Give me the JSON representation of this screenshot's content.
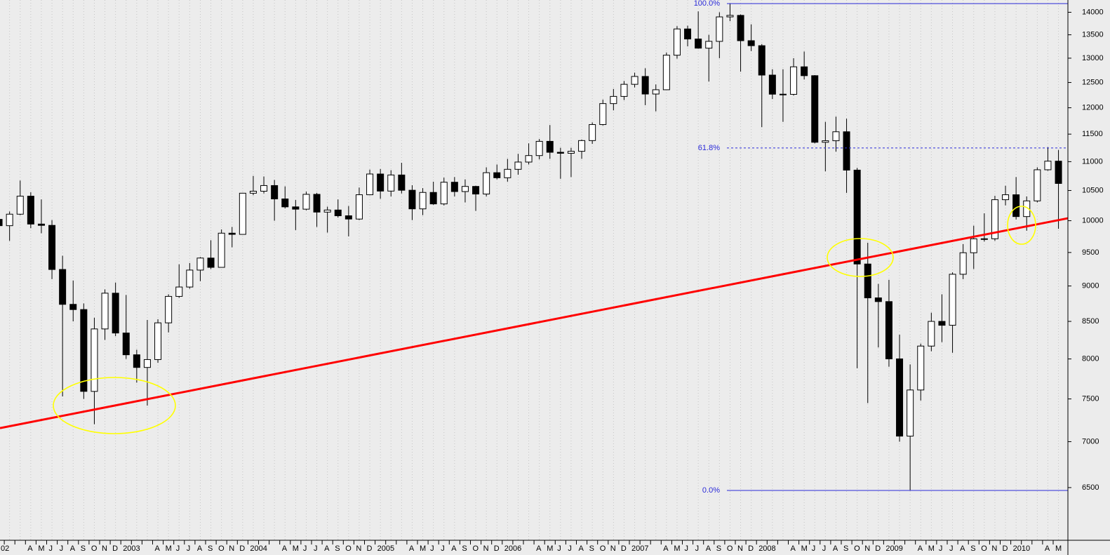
{
  "chart_data": {
    "type": "candlestick",
    "categories": [
      "02",
      null,
      null,
      "A",
      "M",
      "J",
      "J",
      "A",
      "S",
      "O",
      "N",
      "D",
      "2003",
      null,
      null,
      "A",
      "M",
      "J",
      "J",
      "A",
      "S",
      "O",
      "N",
      "D",
      "2004",
      null,
      null,
      "A",
      "M",
      "J",
      "J",
      "A",
      "S",
      "O",
      "N",
      "D",
      "2005",
      null,
      null,
      "A",
      "M",
      "J",
      "J",
      "A",
      "S",
      "O",
      "N",
      "D",
      "2006",
      null,
      null,
      "A",
      "M",
      "J",
      "J",
      "A",
      "S",
      "O",
      "N",
      "D",
      "2007",
      null,
      null,
      "A",
      "M",
      "J",
      "J",
      "A",
      "S",
      "O",
      "N",
      "D",
      "2008",
      null,
      null,
      "A",
      "M",
      "J",
      "J",
      "A",
      "S",
      "O",
      "N",
      "D",
      "2009",
      null,
      null,
      "A",
      "M",
      "J",
      "J",
      "A",
      "S",
      "O",
      "N",
      "D",
      "2010",
      null,
      null,
      "A",
      "M"
    ],
    "open": [
      10022,
      9920,
      10106,
      10404,
      9946,
      9925,
      9243,
      8737,
      8664,
      7592,
      8397,
      8896,
      8342,
      8054,
      7891,
      7992,
      8480,
      8850,
      8985,
      9234,
      9415,
      9275,
      9801,
      9782,
      10454,
      10488,
      10584,
      10358,
      10226,
      10188,
      10435,
      10140,
      10174,
      10080,
      10027,
      10428,
      10783,
      10490,
      10766,
      10504,
      10193,
      10467,
      10275,
      10641,
      10482,
      10569,
      10440,
      10806,
      10718,
      10865,
      10993,
      11109,
      11367,
      11168,
      11150,
      11186,
      11381,
      11679,
      12081,
      12222,
      12463,
      12622,
      12269,
      12354,
      13063,
      13628,
      13409,
      13212,
      13358,
      13896,
      13930,
      13372,
      13265,
      12650,
      12266,
      12263,
      12820,
      12638,
      11350,
      11378,
      11544,
      10851,
      9325,
      8829,
      8776,
      8001,
      7063,
      7609,
      8168,
      8500,
      8447,
      9172,
      9496,
      9712,
      9713,
      10345,
      10428,
      10067,
      10325,
      10857,
      11009
    ],
    "high": [
      10260,
      10150,
      10670,
      10470,
      10350,
      10010,
      9450,
      9080,
      8750,
      8550,
      8950,
      9050,
      8870,
      8120,
      8520,
      8530,
      8880,
      9320,
      9340,
      9430,
      9690,
      9860,
      9900,
      10460,
      10750,
      10740,
      10680,
      10570,
      10340,
      10480,
      10460,
      10230,
      10350,
      10240,
      10550,
      10860,
      10870,
      10850,
      10980,
      10590,
      10540,
      10650,
      10720,
      10730,
      10690,
      10580,
      10900,
      10950,
      11050,
      11140,
      11330,
      11410,
      11670,
      11250,
      11250,
      11400,
      11720,
      12160,
      12370,
      12530,
      12700,
      12790,
      12460,
      13120,
      13690,
      13700,
      14020,
      13500,
      14000,
      14198,
      13950,
      13730,
      13300,
      12770,
      12770,
      13000,
      13140,
      12650,
      11730,
      11830,
      11790,
      10890,
      9650,
      9030,
      9090,
      8320,
      7930,
      8200,
      8620,
      8880,
      9200,
      9630,
      9920,
      10120,
      10410,
      10580,
      10730,
      10400,
      10900,
      11260,
      11210
    ],
    "low": [
      9530,
      9680,
      10090,
      9880,
      9800,
      9100,
      7530,
      8500,
      7500,
      7200,
      8250,
      8300,
      8000,
      7700,
      7420,
      7950,
      8350,
      8830,
      8960,
      9070,
      9250,
      9270,
      9580,
      9780,
      10420,
      10450,
      10000,
      10200,
      9850,
      10170,
      9900,
      9810,
      10050,
      9750,
      10010,
      10420,
      10360,
      10400,
      10450,
      10010,
      10090,
      10260,
      10250,
      10400,
      10300,
      10160,
      10400,
      10690,
      10650,
      10770,
      10950,
      11040,
      11050,
      10700,
      10730,
      11050,
      11320,
      11660,
      11950,
      12150,
      12400,
      12050,
      11930,
      12350,
      12990,
      13250,
      13200,
      12520,
      13000,
      13800,
      12720,
      13150,
      11630,
      12170,
      11730,
      12240,
      12560,
      11330,
      10830,
      11180,
      10460,
      7880,
      7450,
      8150,
      7900,
      7000,
      6470,
      7480,
      8100,
      8220,
      8080,
      9100,
      9250,
      9670,
      9680,
      10250,
      10020,
      9840,
      10300,
      10840,
      9870
    ],
    "close": [
      9920,
      10106,
      10404,
      9946,
      9925,
      9243,
      8737,
      8664,
      7592,
      8397,
      8896,
      8342,
      8054,
      7891,
      7992,
      8480,
      8850,
      8985,
      9234,
      9415,
      9275,
      9801,
      9782,
      10454,
      10488,
      10584,
      10358,
      10226,
      10188,
      10435,
      10140,
      10174,
      10080,
      10027,
      10428,
      10783,
      10490,
      10766,
      10504,
      10193,
      10467,
      10275,
      10641,
      10482,
      10569,
      10440,
      10806,
      10718,
      10865,
      10993,
      11109,
      11367,
      11168,
      11150,
      11186,
      11381,
      11679,
      12081,
      12222,
      12463,
      12622,
      12269,
      12354,
      13063,
      13628,
      13409,
      13212,
      13358,
      13896,
      13930,
      13372,
      13265,
      12650,
      12266,
      12263,
      12820,
      12638,
      11350,
      11378,
      11544,
      10851,
      9325,
      8829,
      8776,
      8001,
      7063,
      7609,
      8168,
      8500,
      8447,
      9172,
      9496,
      9712,
      9713,
      10345,
      10428,
      10067,
      10325,
      10857,
      11009,
      10620
    ],
    "up_color": "#ffffff",
    "down_color": "#000000",
    "ylim": [
      5970,
      14280
    ],
    "log_scale": true,
    "yticks": [
      6500,
      7000,
      7500,
      8000,
      8500,
      9000,
      9500,
      10000,
      10500,
      11000,
      11500,
      12000,
      12500,
      13000,
      13500,
      14000
    ],
    "grid": true,
    "levels": [
      {
        "label": "100.0%",
        "value": 14198
      },
      {
        "label": "61.8%",
        "value": 11246
      },
      {
        "label": "0.0%",
        "value": 6470
      }
    ],
    "level_color": "#2a2ad8",
    "trendline": {
      "color": "#ff0000",
      "values": [
        7155,
        10040
      ]
    }
  }
}
